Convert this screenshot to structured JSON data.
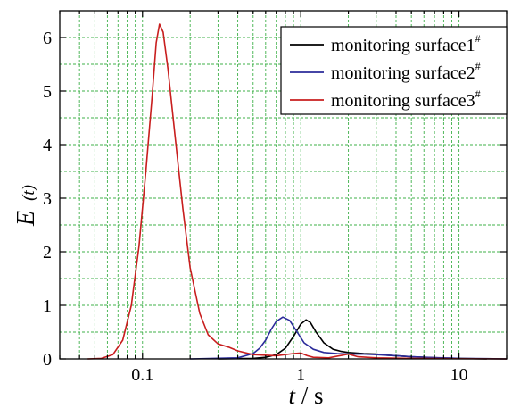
{
  "chart_data": {
    "type": "line",
    "x_scale": "log",
    "xlim": [
      0.03,
      20
    ],
    "ylim": [
      0,
      6.5
    ],
    "x_ticks": [
      {
        "value": 0.1,
        "label": "0.1"
      },
      {
        "value": 1,
        "label": "1"
      },
      {
        "value": 10,
        "label": "10"
      }
    ],
    "y_ticks": [
      0,
      1,
      2,
      3,
      4,
      5,
      6
    ],
    "xlabel": {
      "italic": "t",
      "rest": " / s"
    },
    "ylabel": {
      "main": "E",
      "paren": "(t)"
    },
    "grid": true,
    "legend_position": "top-right",
    "series": [
      {
        "name": "monitoring surface1",
        "sup": "#",
        "color": "#000000",
        "points": [
          [
            0.3,
            0
          ],
          [
            0.5,
            0.01
          ],
          [
            0.6,
            0.03
          ],
          [
            0.7,
            0.08
          ],
          [
            0.8,
            0.2
          ],
          [
            0.9,
            0.42
          ],
          [
            1.0,
            0.65
          ],
          [
            1.08,
            0.73
          ],
          [
            1.15,
            0.68
          ],
          [
            1.25,
            0.5
          ],
          [
            1.4,
            0.3
          ],
          [
            1.6,
            0.18
          ],
          [
            1.8,
            0.14
          ],
          [
            2.0,
            0.12
          ],
          [
            2.5,
            0.1
          ],
          [
            3.0,
            0.09
          ],
          [
            3.5,
            0.07
          ],
          [
            4,
            0.06
          ],
          [
            5,
            0.04
          ],
          [
            6,
            0.03
          ],
          [
            8,
            0.015
          ],
          [
            10,
            0.01
          ],
          [
            15,
            0.0
          ]
        ]
      },
      {
        "name": "monitoring surface2",
        "sup": "#",
        "color": "#2b2b9a",
        "points": [
          [
            0.2,
            0
          ],
          [
            0.4,
            0.02
          ],
          [
            0.5,
            0.1
          ],
          [
            0.55,
            0.2
          ],
          [
            0.6,
            0.35
          ],
          [
            0.65,
            0.55
          ],
          [
            0.7,
            0.7
          ],
          [
            0.77,
            0.78
          ],
          [
            0.85,
            0.72
          ],
          [
            0.95,
            0.5
          ],
          [
            1.05,
            0.3
          ],
          [
            1.2,
            0.18
          ],
          [
            1.4,
            0.12
          ],
          [
            1.7,
            0.1
          ],
          [
            2.0,
            0.09
          ],
          [
            2.5,
            0.09
          ],
          [
            3.0,
            0.08
          ],
          [
            4,
            0.06
          ],
          [
            5,
            0.04
          ],
          [
            7,
            0.025
          ],
          [
            10,
            0.01
          ],
          [
            15,
            0.005
          ],
          [
            20,
            0.0
          ]
        ]
      },
      {
        "name": "monitoring surface3",
        "sup": "#",
        "color": "#c81e1e",
        "points": [
          [
            0.045,
            0
          ],
          [
            0.055,
            0.01
          ],
          [
            0.065,
            0.08
          ],
          [
            0.075,
            0.35
          ],
          [
            0.085,
            1.0
          ],
          [
            0.095,
            2.1
          ],
          [
            0.105,
            3.5
          ],
          [
            0.115,
            4.9
          ],
          [
            0.122,
            5.9
          ],
          [
            0.128,
            6.25
          ],
          [
            0.135,
            6.1
          ],
          [
            0.145,
            5.4
          ],
          [
            0.16,
            4.2
          ],
          [
            0.18,
            2.8
          ],
          [
            0.2,
            1.7
          ],
          [
            0.23,
            0.85
          ],
          [
            0.26,
            0.45
          ],
          [
            0.3,
            0.28
          ],
          [
            0.35,
            0.22
          ],
          [
            0.4,
            0.15
          ],
          [
            0.5,
            0.08
          ],
          [
            0.7,
            0.06
          ],
          [
            0.9,
            0.1
          ],
          [
            1.0,
            0.11
          ],
          [
            1.1,
            0.06
          ],
          [
            1.2,
            0.03
          ],
          [
            1.5,
            0.02
          ],
          [
            2.0,
            0.09
          ],
          [
            2.3,
            0.04
          ],
          [
            3,
            0.02
          ],
          [
            5,
            0.01
          ],
          [
            8,
            0.005
          ],
          [
            20,
            0.0
          ]
        ]
      }
    ]
  }
}
